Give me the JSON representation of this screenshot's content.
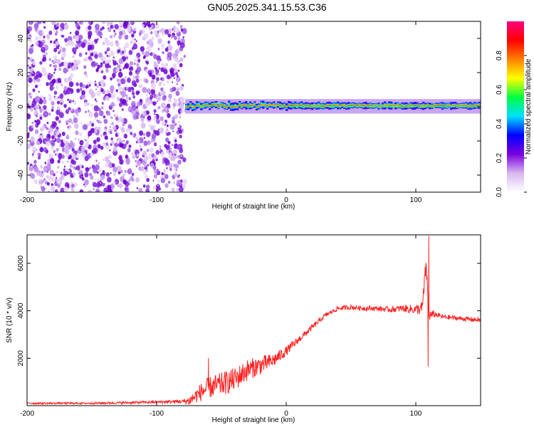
{
  "figure": {
    "title": "GN05.2025.341.15.53.C36"
  },
  "chart_data": [
    {
      "type": "heatmap",
      "name": "spectrogram",
      "xlabel": "Height of straight line (km)",
      "ylabel": "Frequency (Hz)",
      "xlim": [
        -200,
        150
      ],
      "ylim": [
        -50,
        50
      ],
      "xticks": [
        -200,
        -100,
        0,
        100
      ],
      "yticks": [
        -40,
        -20,
        0,
        20,
        40
      ],
      "description_regions": [
        {
          "x_range": [
            -200,
            -78
          ],
          "freq_range": [
            -50,
            50
          ],
          "level": "low noise (0.1-0.25)"
        },
        {
          "x_range": [
            -78,
            150
          ],
          "freq_range": [
            -3,
            4
          ],
          "level": "band near 0 Hz, peak ~0.9"
        }
      ],
      "colorbar": {
        "label": "Normalized spectral amplitude",
        "range": [
          0,
          1
        ],
        "ticks": [
          0.0,
          0.2,
          0.4,
          0.6,
          0.8
        ],
        "colors": [
          "#ffffff",
          "#d8b8f0",
          "#7b00e0",
          "#0000ff",
          "#00e0ff",
          "#00ff40",
          "#ffff00",
          "#ff8000",
          "#ff0000",
          "#ff0080"
        ]
      }
    },
    {
      "type": "line",
      "name": "snr",
      "xlabel": "Height of straight line (km)",
      "ylabel": "SNR (10 * v/v)",
      "xlim": [
        -200,
        150
      ],
      "ylim": [
        0,
        7200
      ],
      "xticks": [
        -200,
        -100,
        0,
        100
      ],
      "yticks": [
        2000,
        4000,
        6000
      ],
      "series": [
        {
          "name": "SNR",
          "color": "#ff2020",
          "x": [
            -200,
            -150,
            -100,
            -80,
            -75,
            -70,
            -65,
            -60,
            -50,
            -40,
            -30,
            -20,
            -10,
            0,
            10,
            20,
            30,
            40,
            50,
            60,
            70,
            80,
            90,
            100,
            105,
            108,
            110,
            115,
            120,
            130,
            140,
            150
          ],
          "y": [
            100,
            100,
            150,
            180,
            200,
            400,
            600,
            750,
            900,
            1100,
            1500,
            1700,
            1900,
            2300,
            2800,
            3300,
            3800,
            4100,
            4150,
            4100,
            4100,
            4050,
            4100,
            4050,
            4100,
            6000,
            3800,
            3850,
            3750,
            3700,
            3650,
            3600
          ],
          "noise": [
            40,
            40,
            60,
            80,
            200,
            300,
            400,
            450,
            500,
            500,
            450,
            400,
            300,
            200,
            150,
            120,
            100,
            100,
            100,
            100,
            100,
            120,
            150,
            200,
            300,
            400,
            250,
            120,
            100,
            100,
            100,
            100
          ],
          "spikes": [
            {
              "x": 110,
              "y": 7150
            },
            {
              "x": 109.5,
              "y": 1650
            },
            {
              "x": -60,
              "y": 2000
            }
          ]
        }
      ]
    }
  ]
}
